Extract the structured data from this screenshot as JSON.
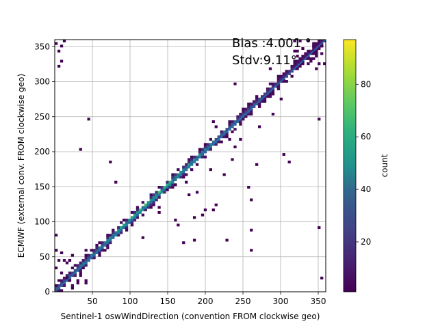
{
  "chart_data": {
    "type": "heatmap",
    "title": "",
    "xlabel": "Sentinel-1 oswWindDirection (convention FROM clockwise geo)",
    "ylabel": "ECMWF (external conv. FROM clockwise geo)",
    "xlim": [
      0,
      360
    ],
    "ylim": [
      0,
      360
    ],
    "xticks": [
      50,
      100,
      150,
      200,
      250,
      300,
      350
    ],
    "yticks": [
      0,
      50,
      100,
      150,
      200,
      250,
      300,
      350
    ],
    "grid": true,
    "bin_width": 3.6,
    "colormap": "viridis",
    "colorbar": {
      "label": "count",
      "min": 1,
      "max": 97,
      "ticks": [
        20,
        40,
        60,
        80
      ]
    },
    "annotations": {
      "bias": "Bias :4.001 °",
      "stdv": "Stdv:9.11°"
    },
    "reference_line": {
      "x": [
        0,
        360
      ],
      "y": [
        0,
        360
      ],
      "color": "#1f77b4"
    },
    "diagonal_band": {
      "halfwidth": 12,
      "peak_count": 80
    },
    "outlier_points": [
      [
        3,
        356
      ],
      [
        8,
        352
      ],
      [
        12,
        357
      ],
      [
        7,
        344
      ],
      [
        5,
        322
      ],
      [
        3,
        82
      ],
      [
        10,
        330
      ],
      [
        33,
        205
      ],
      [
        44,
        248
      ],
      [
        82,
        157
      ],
      [
        75,
        185
      ],
      [
        148,
        144
      ],
      [
        137,
        113
      ],
      [
        185,
        75
      ],
      [
        200,
        116
      ],
      [
        208,
        175
      ],
      [
        215,
        234
      ],
      [
        212,
        242
      ],
      [
        232,
        218
      ],
      [
        241,
        297
      ],
      [
        258,
        149
      ],
      [
        260,
        130
      ],
      [
        262,
        89
      ],
      [
        268,
        180
      ],
      [
        290,
        255
      ],
      [
        303,
        196
      ],
      [
        310,
        185
      ],
      [
        300,
        275
      ],
      [
        330,
        348
      ],
      [
        350,
        92
      ],
      [
        352,
        246
      ],
      [
        356,
        20
      ],
      [
        118,
        79
      ],
      [
        140,
        120
      ],
      [
        160,
        103
      ],
      [
        165,
        96
      ],
      [
        175,
        157
      ],
      [
        178,
        138
      ],
      [
        190,
        143
      ],
      [
        195,
        108
      ],
      [
        212,
        118
      ],
      [
        225,
        168
      ],
      [
        235,
        190
      ],
      [
        240,
        207
      ],
      [
        245,
        216
      ],
      [
        172,
        70
      ],
      [
        186,
        105
      ],
      [
        270,
        235
      ],
      [
        285,
        320
      ],
      [
        320,
        342
      ],
      [
        260,
        60
      ],
      [
        340,
        330
      ],
      [
        228,
        75
      ],
      [
        213,
        123
      ],
      [
        30,
        12
      ],
      [
        15,
        40
      ],
      [
        348,
        318
      ]
    ]
  }
}
